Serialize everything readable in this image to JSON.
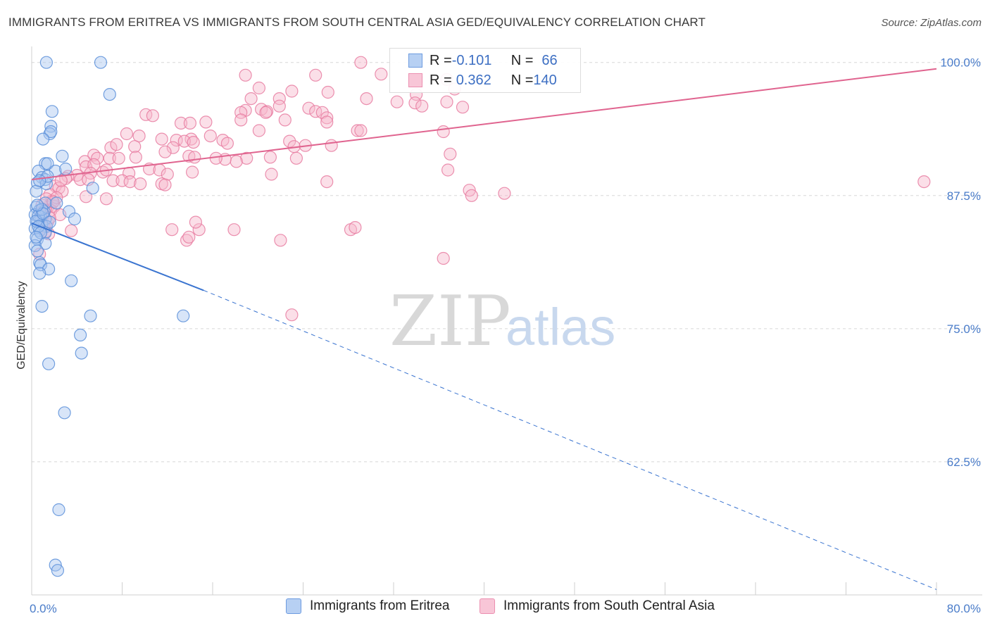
{
  "header": {
    "title": "IMMIGRANTS FROM ERITREA VS IMMIGRANTS FROM SOUTH CENTRAL ASIA GED/EQUIVALENCY CORRELATION CHART",
    "source": "Source: ZipAtlas.com"
  },
  "watermark": {
    "zip": "ZIP",
    "atlas": "atlas"
  },
  "stats": {
    "blue": {
      "r_label": "R = ",
      "r_value": "-0.101",
      "n_label": "N = ",
      "n_value": "66"
    },
    "pink": {
      "r_label": "R = ",
      "r_value": "0.362",
      "n_label": "N = ",
      "n_value": "140"
    }
  },
  "legend": {
    "blue_label": "Immigrants from Eritrea",
    "pink_label": "Immigrants from South Central Asia"
  },
  "colors": {
    "blue_fill": "#a9c6f0",
    "blue_stroke": "#5b8fd9",
    "blue_line": "#3a74d0",
    "pink_fill": "#f6b8cc",
    "pink_stroke": "#e87ca1",
    "pink_line": "#e0648f",
    "grid": "#d8d8d8",
    "tick_text": "#4a7cc9"
  },
  "chart_data": {
    "type": "scatter",
    "title": "IMMIGRANTS FROM ERITREA VS IMMIGRANTS FROM SOUTH CENTRAL ASIA GED/EQUIVALENCY CORRELATION CHART",
    "xlabel": "",
    "ylabel": "GED/Equivalency",
    "xlim": [
      0,
      80
    ],
    "ylim": [
      50,
      101.5
    ],
    "x_tick_labels": [
      "0.0%",
      "80.0%"
    ],
    "y_ticks": [
      62.5,
      75.0,
      87.5,
      100.0
    ],
    "y_tick_labels": [
      "62.5%",
      "75.0%",
      "87.5%",
      "100.0%"
    ],
    "grid": "horizontal dashed",
    "legend_position": "bottom-center",
    "series": [
      {
        "name": "Immigrants from Eritrea",
        "color": "#5b8fd9",
        "regression": {
          "x": [
            0.0,
            15.2
          ],
          "y": [
            84.9,
            78.6
          ],
          "dashed_to": [
            80.0,
            50.5
          ]
        },
        "points": [
          [
            1.3,
            100.0
          ],
          [
            6.1,
            100.0
          ],
          [
            6.9,
            97.0
          ],
          [
            1.8,
            95.4
          ],
          [
            1.7,
            94.0
          ],
          [
            1.6,
            93.3
          ],
          [
            1.7,
            93.5
          ],
          [
            1.0,
            92.8
          ],
          [
            2.7,
            91.2
          ],
          [
            1.2,
            90.5
          ],
          [
            1.4,
            90.5
          ],
          [
            0.6,
            89.8
          ],
          [
            2.1,
            89.8
          ],
          [
            3.0,
            90.0
          ],
          [
            0.9,
            89.2
          ],
          [
            1.2,
            89.0
          ],
          [
            0.5,
            88.7
          ],
          [
            1.3,
            88.6
          ],
          [
            5.4,
            88.2
          ],
          [
            0.4,
            87.9
          ],
          [
            1.2,
            86.8
          ],
          [
            2.2,
            86.8
          ],
          [
            0.4,
            86.4
          ],
          [
            0.7,
            86.1
          ],
          [
            1.1,
            86.0
          ],
          [
            3.3,
            86.0
          ],
          [
            0.3,
            85.7
          ],
          [
            0.8,
            85.5
          ],
          [
            1.2,
            85.3
          ],
          [
            3.8,
            85.3
          ],
          [
            0.5,
            85.0
          ],
          [
            0.9,
            84.8
          ],
          [
            1.3,
            84.6
          ],
          [
            0.3,
            84.4
          ],
          [
            0.7,
            84.2
          ],
          [
            1.2,
            84.0
          ],
          [
            0.5,
            83.4
          ],
          [
            1.2,
            83.0
          ],
          [
            0.3,
            82.8
          ],
          [
            0.5,
            82.3
          ],
          [
            0.7,
            81.2
          ],
          [
            0.8,
            81.0
          ],
          [
            1.5,
            80.6
          ],
          [
            0.7,
            80.2
          ],
          [
            3.5,
            79.5
          ],
          [
            0.9,
            77.1
          ],
          [
            5.2,
            76.2
          ],
          [
            13.4,
            76.2
          ],
          [
            4.3,
            74.4
          ],
          [
            4.4,
            72.7
          ],
          [
            1.5,
            71.7
          ],
          [
            2.9,
            67.1
          ],
          [
            2.4,
            58.0
          ],
          [
            2.1,
            52.8
          ],
          [
            2.3,
            52.3
          ],
          [
            0.6,
            85.6
          ],
          [
            0.9,
            86.2
          ],
          [
            0.4,
            85.1
          ],
          [
            1.0,
            85.8
          ],
          [
            0.6,
            84.6
          ],
          [
            0.8,
            84.0
          ],
          [
            1.4,
            89.3
          ],
          [
            0.7,
            88.9
          ],
          [
            0.4,
            83.6
          ],
          [
            1.6,
            85.0
          ],
          [
            0.5,
            86.6
          ]
        ]
      },
      {
        "name": "Immigrants from South Central Asia",
        "color": "#e87ca1",
        "regression": {
          "x": [
            0.0,
            80.0
          ],
          "y": [
            89.0,
            99.4
          ]
        },
        "points": [
          [
            29.1,
            100.0
          ],
          [
            30.9,
            98.9
          ],
          [
            34.1,
            98.4
          ],
          [
            36.7,
            98.4
          ],
          [
            25.1,
            98.8
          ],
          [
            18.9,
            98.8
          ],
          [
            20.1,
            97.6
          ],
          [
            23.0,
            97.3
          ],
          [
            37.4,
            97.5
          ],
          [
            26.2,
            97.2
          ],
          [
            34.0,
            97.0
          ],
          [
            29.6,
            96.6
          ],
          [
            19.4,
            96.6
          ],
          [
            21.9,
            96.6
          ],
          [
            32.3,
            96.3
          ],
          [
            36.7,
            96.3
          ],
          [
            33.9,
            96.2
          ],
          [
            38.1,
            95.8
          ],
          [
            34.5,
            95.9
          ],
          [
            21.9,
            95.9
          ],
          [
            24.5,
            95.7
          ],
          [
            18.9,
            95.5
          ],
          [
            18.5,
            95.3
          ],
          [
            20.3,
            95.6
          ],
          [
            20.8,
            95.4
          ],
          [
            20.7,
            95.3
          ],
          [
            25.1,
            95.4
          ],
          [
            25.7,
            95.3
          ],
          [
            26.1,
            94.8
          ],
          [
            10.1,
            95.1
          ],
          [
            10.7,
            95.0
          ],
          [
            13.2,
            94.3
          ],
          [
            14.0,
            94.3
          ],
          [
            15.4,
            94.4
          ],
          [
            22.4,
            94.6
          ],
          [
            26.1,
            94.4
          ],
          [
            18.5,
            94.6
          ],
          [
            20.1,
            93.6
          ],
          [
            28.8,
            93.6
          ],
          [
            29.1,
            93.6
          ],
          [
            36.4,
            93.5
          ],
          [
            8.4,
            93.3
          ],
          [
            9.5,
            93.1
          ],
          [
            14.1,
            92.8
          ],
          [
            11.5,
            92.8
          ],
          [
            12.8,
            92.7
          ],
          [
            15.8,
            93.1
          ],
          [
            16.9,
            92.7
          ],
          [
            17.3,
            92.4
          ],
          [
            22.8,
            92.6
          ],
          [
            24.2,
            92.2
          ],
          [
            23.2,
            92.1
          ],
          [
            26.5,
            92.2
          ],
          [
            13.5,
            92.6
          ],
          [
            12.5,
            92.0
          ],
          [
            14.3,
            92.5
          ],
          [
            7.0,
            92.0
          ],
          [
            7.5,
            92.3
          ],
          [
            9.1,
            92.1
          ],
          [
            11.8,
            91.6
          ],
          [
            13.9,
            91.2
          ],
          [
            19.0,
            91.0
          ],
          [
            21.1,
            91.1
          ],
          [
            18.1,
            90.7
          ],
          [
            17.1,
            90.9
          ],
          [
            16.3,
            91.0
          ],
          [
            14.4,
            91.1
          ],
          [
            23.4,
            91.0
          ],
          [
            37.0,
            91.4
          ],
          [
            5.5,
            91.3
          ],
          [
            5.8,
            91.0
          ],
          [
            6.9,
            91.0
          ],
          [
            7.7,
            91.0
          ],
          [
            9.2,
            91.1
          ],
          [
            4.7,
            90.7
          ],
          [
            4.8,
            90.2
          ],
          [
            5.5,
            90.4
          ],
          [
            6.3,
            89.7
          ],
          [
            6.6,
            89.9
          ],
          [
            8.6,
            89.6
          ],
          [
            10.4,
            90.0
          ],
          [
            11.3,
            89.9
          ],
          [
            12.0,
            89.5
          ],
          [
            14.2,
            89.7
          ],
          [
            21.2,
            89.5
          ],
          [
            36.8,
            89.9
          ],
          [
            5.2,
            89.6
          ],
          [
            4.0,
            89.4
          ],
          [
            3.2,
            89.3
          ],
          [
            3.0,
            89.1
          ],
          [
            4.3,
            89.0
          ],
          [
            5.0,
            89.0
          ],
          [
            7.2,
            88.9
          ],
          [
            8.0,
            88.9
          ],
          [
            8.7,
            88.8
          ],
          [
            9.6,
            88.6
          ],
          [
            11.5,
            88.6
          ],
          [
            11.8,
            88.5
          ],
          [
            2.1,
            88.4
          ],
          [
            2.4,
            88.2
          ],
          [
            26.1,
            88.8
          ],
          [
            38.7,
            88.0
          ],
          [
            38.9,
            87.5
          ],
          [
            41.8,
            87.7
          ],
          [
            78.9,
            88.8
          ],
          [
            2.7,
            87.9
          ],
          [
            1.6,
            87.6
          ],
          [
            4.8,
            87.4
          ],
          [
            6.6,
            87.2
          ],
          [
            1.8,
            87.0
          ],
          [
            2.0,
            86.5
          ],
          [
            1.4,
            86.4
          ],
          [
            1.7,
            86.1
          ],
          [
            3.5,
            84.2
          ],
          [
            2.5,
            85.7
          ],
          [
            12.4,
            84.3
          ],
          [
            14.8,
            84.3
          ],
          [
            14.5,
            85.0
          ],
          [
            17.9,
            84.3
          ],
          [
            28.2,
            84.3
          ],
          [
            28.6,
            84.5
          ],
          [
            13.7,
            83.3
          ],
          [
            13.9,
            83.6
          ],
          [
            22.0,
            83.3
          ],
          [
            36.4,
            81.6
          ],
          [
            23.0,
            76.3
          ],
          [
            1.2,
            86.2
          ],
          [
            1.4,
            85.0
          ],
          [
            1.1,
            84.6
          ],
          [
            0.9,
            86.6
          ],
          [
            1.3,
            87.2
          ],
          [
            0.8,
            85.9
          ],
          [
            1.5,
            83.9
          ],
          [
            0.7,
            82.0
          ],
          [
            2.2,
            87.3
          ],
          [
            1.0,
            85.6
          ],
          [
            1.9,
            86.9
          ],
          [
            1.2,
            84.1
          ],
          [
            1.6,
            85.4
          ],
          [
            2.6,
            88.9
          ]
        ]
      }
    ]
  }
}
